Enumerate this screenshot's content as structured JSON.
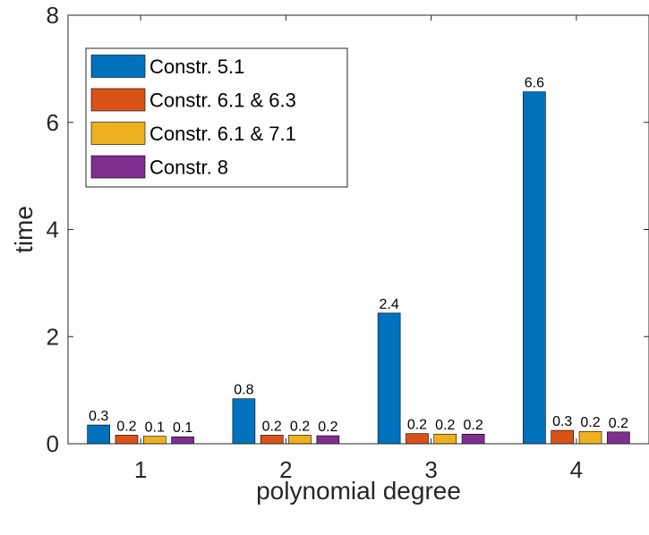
{
  "chart_data": {
    "type": "bar",
    "categories": [
      "1",
      "2",
      "3",
      "4"
    ],
    "series": [
      {
        "name": "Constr. 5.1",
        "values": [
          0.35,
          0.84,
          2.44,
          6.57
        ],
        "labels": [
          "0.3",
          "0.8",
          "2.4",
          "6.6"
        ],
        "color": "#0072BD"
      },
      {
        "name": "Constr. 6.1 & 6.3",
        "values": [
          0.16,
          0.16,
          0.19,
          0.25
        ],
        "labels": [
          "0.2",
          "0.2",
          "0.2",
          "0.3"
        ],
        "color": "#D95319"
      },
      {
        "name": "Constr. 6.1 & 7.1",
        "values": [
          0.14,
          0.16,
          0.18,
          0.23
        ],
        "labels": [
          "0.1",
          "0.2",
          "0.2",
          "0.2"
        ],
        "color": "#EDB120"
      },
      {
        "name": "Constr. 8",
        "values": [
          0.13,
          0.15,
          0.18,
          0.22
        ],
        "labels": [
          "0.1",
          "0.2",
          "0.2",
          "0.2"
        ],
        "color": "#7E2F8E"
      }
    ],
    "xlabel": "polynomial degree",
    "ylabel": "time",
    "ylim": [
      0,
      8
    ],
    "yticks": [
      0,
      2,
      4,
      6,
      8
    ],
    "grid": false,
    "legend_position": "top-left"
  }
}
